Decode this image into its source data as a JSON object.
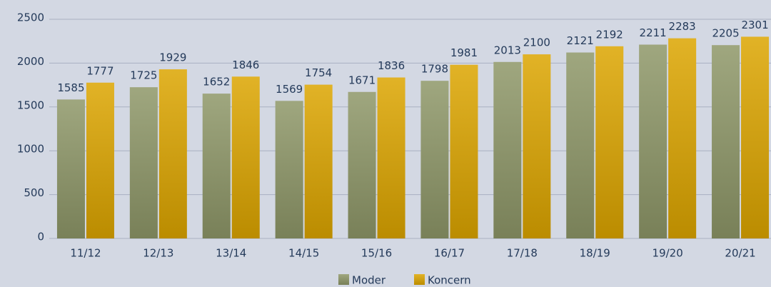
{
  "chart_data": {
    "type": "bar",
    "categories": [
      "11/12",
      "12/13",
      "13/14",
      "14/15",
      "15/16",
      "16/17",
      "17/18",
      "18/19",
      "19/20",
      "20/21"
    ],
    "series": [
      {
        "name": "Moder",
        "color": "#8e9768",
        "values": [
          1585,
          1725,
          1652,
          1569,
          1671,
          1798,
          2013,
          2121,
          2211,
          2205
        ]
      },
      {
        "name": "Koncern",
        "color": "#dca500",
        "values": [
          1777,
          1929,
          1846,
          1754,
          1836,
          1981,
          2100,
          2192,
          2283,
          2301
        ]
      }
    ],
    "ylim": [
      0,
      2500
    ],
    "yticks": [
      0,
      500,
      1000,
      1500,
      2000,
      2500
    ],
    "grid": true,
    "legend": "bottom"
  }
}
